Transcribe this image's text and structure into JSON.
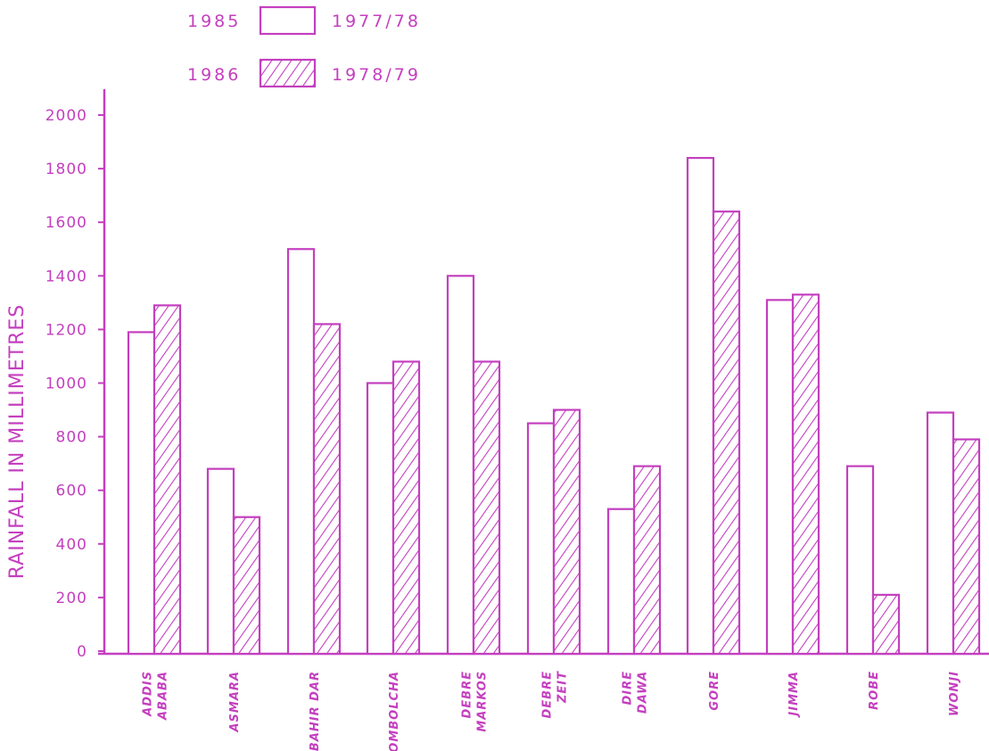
{
  "chart_data": {
    "type": "bar",
    "ylabel": "RAINFALL  IN  MILLIMETRES",
    "ylim": [
      0,
      2000
    ],
    "yticks": [
      "0",
      "200",
      "400",
      "600",
      "800",
      "1000",
      "1200",
      "1400",
      "1600",
      "1800",
      "2000"
    ],
    "categories": [
      [
        "ADDIS",
        "ABABA"
      ],
      [
        "ASMARA"
      ],
      [
        "BAHIR DAR"
      ],
      [
        "KOMBOLCHA"
      ],
      [
        "DEBRE",
        "MARKOS"
      ],
      [
        "DEBRE",
        "ZEIT"
      ],
      [
        "DIRE",
        "DAWA"
      ],
      [
        "GORE"
      ],
      [
        "JIMMA"
      ],
      [
        "ROBE"
      ],
      [
        "WONJI"
      ]
    ],
    "legend": [
      {
        "label_left": "1985",
        "label_right": "1977/78",
        "pattern": "open"
      },
      {
        "label_left": "1986",
        "label_right": "1978/79",
        "pattern": "hatched"
      }
    ],
    "series": [
      {
        "pattern": "open",
        "values": [
          1190,
          680,
          1500,
          1000,
          1400,
          850,
          530,
          1840,
          1310,
          690,
          890
        ]
      },
      {
        "pattern": "hatched",
        "values": [
          1290,
          500,
          1220,
          1080,
          1080,
          900,
          690,
          1640,
          1330,
          210,
          790
        ]
      }
    ],
    "legend_placement": "top",
    "grid": false,
    "colors": {
      "ink": "#c43fbf",
      "background": "#ffffff"
    }
  }
}
